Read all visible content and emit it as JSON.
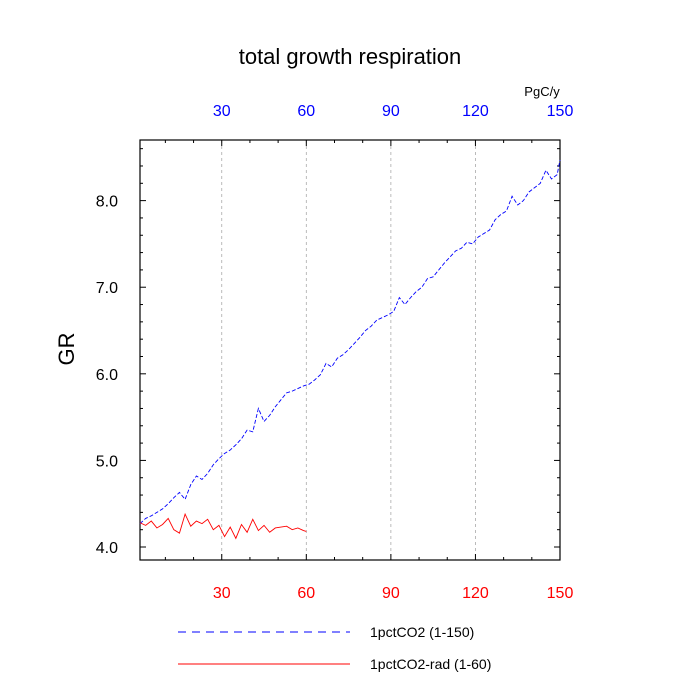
{
  "chart_data": {
    "type": "line",
    "title": "total growth respiration",
    "ylabel": "GR",
    "top_axis_unit": "PgC/y",
    "xlim": [
      1,
      150
    ],
    "ylim": [
      3.85,
      8.7
    ],
    "x_ticks": [
      30,
      60,
      90,
      120,
      150
    ],
    "x_tick_labels": [
      "30",
      "60",
      "90",
      "120",
      "150"
    ],
    "y_ticks": [
      4.0,
      5.0,
      6.0,
      7.0,
      8.0
    ],
    "y_tick_labels": [
      "4.0",
      "5.0",
      "6.0",
      "7.0",
      "8.0"
    ],
    "top_axis_color": "#0000ff",
    "bottom_axis_color": "#ff0000",
    "grid": "vertical dashed at x ticks",
    "legend_position": "bottom",
    "series": [
      {
        "name": "1pctCO2 (1-150)",
        "color": "#0000ff",
        "dash": "dashed",
        "x": [
          1,
          3,
          5,
          7,
          9,
          11,
          13,
          15,
          17,
          19,
          21,
          23,
          25,
          27,
          29,
          31,
          33,
          35,
          37,
          39,
          41,
          43,
          45,
          47,
          49,
          51,
          53,
          55,
          57,
          59,
          61,
          63,
          65,
          67,
          69,
          71,
          73,
          75,
          77,
          79,
          81,
          83,
          85,
          87,
          89,
          91,
          93,
          95,
          97,
          99,
          101,
          103,
          105,
          107,
          109,
          111,
          113,
          115,
          117,
          119,
          121,
          123,
          125,
          127,
          129,
          131,
          133,
          135,
          137,
          139,
          141,
          143,
          145,
          147,
          149,
          150
        ],
        "values": [
          4.27,
          4.33,
          4.36,
          4.4,
          4.44,
          4.5,
          4.57,
          4.63,
          4.55,
          4.72,
          4.82,
          4.78,
          4.85,
          4.95,
          5.02,
          5.08,
          5.12,
          5.18,
          5.25,
          5.35,
          5.33,
          5.6,
          5.45,
          5.52,
          5.62,
          5.7,
          5.78,
          5.8,
          5.83,
          5.86,
          5.88,
          5.93,
          5.99,
          6.12,
          6.08,
          6.18,
          6.22,
          6.28,
          6.35,
          6.42,
          6.5,
          6.55,
          6.62,
          6.65,
          6.68,
          6.72,
          6.88,
          6.8,
          6.88,
          6.95,
          7.0,
          7.1,
          7.12,
          7.2,
          7.28,
          7.35,
          7.42,
          7.45,
          7.52,
          7.5,
          7.58,
          7.62,
          7.66,
          7.78,
          7.84,
          7.88,
          8.05,
          7.95,
          8.0,
          8.1,
          8.15,
          8.2,
          8.35,
          8.25,
          8.3,
          8.47
        ]
      },
      {
        "name": "1pctCO2-rad (1-60)",
        "color": "#ff0000",
        "dash": "solid",
        "x": [
          1,
          3,
          5,
          7,
          9,
          11,
          13,
          15,
          17,
          19,
          21,
          23,
          25,
          27,
          29,
          31,
          33,
          35,
          37,
          39,
          41,
          43,
          45,
          47,
          49,
          51,
          53,
          55,
          57,
          59,
          60
        ],
        "values": [
          4.28,
          4.25,
          4.3,
          4.22,
          4.26,
          4.33,
          4.2,
          4.16,
          4.38,
          4.24,
          4.3,
          4.27,
          4.32,
          4.2,
          4.25,
          4.12,
          4.23,
          4.1,
          4.26,
          4.17,
          4.32,
          4.19,
          4.25,
          4.17,
          4.22,
          4.23,
          4.24,
          4.2,
          4.22,
          4.19,
          4.18
        ]
      }
    ]
  }
}
